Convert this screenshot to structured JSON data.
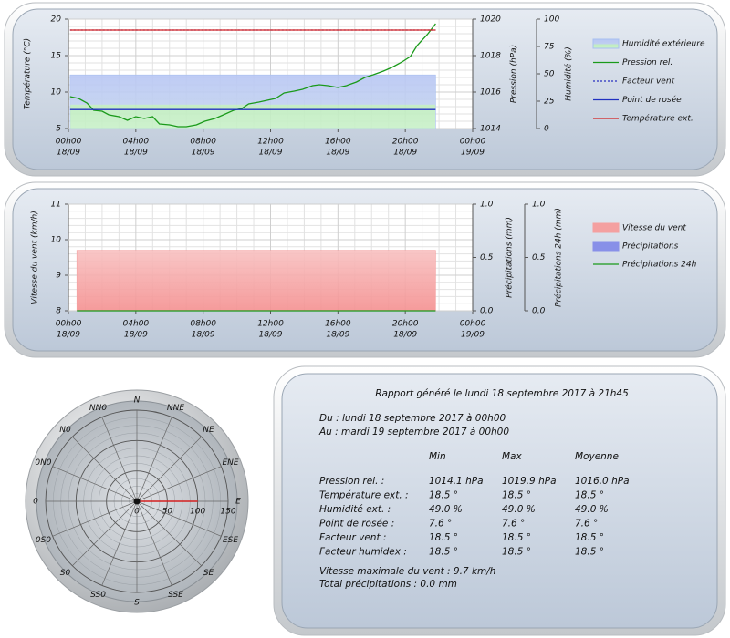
{
  "chart_data": [
    {
      "type": "line",
      "xlim": [
        0,
        24
      ],
      "xticks": [
        {
          "value": 0,
          "label": "00h00",
          "sub": "18/09"
        },
        {
          "value": 4,
          "label": "04h00",
          "sub": "18/09"
        },
        {
          "value": 8,
          "label": "08h00",
          "sub": "18/09"
        },
        {
          "value": 12,
          "label": "12h00",
          "sub": "18/09"
        },
        {
          "value": 16,
          "label": "16h00",
          "sub": "18/09"
        },
        {
          "value": 20,
          "label": "20h00",
          "sub": "18/09"
        },
        {
          "value": 24,
          "label": "00h00",
          "sub": "19/09"
        }
      ],
      "ylabel": "Température (°C)",
      "ylim": [
        5,
        20
      ],
      "yticks": [
        5,
        10,
        15,
        20
      ],
      "y2label": "Pression (hPa)",
      "y2lim": [
        1014,
        1020
      ],
      "y2ticks": [
        1014,
        1016,
        1018,
        1020
      ],
      "y3label": "Humidité (%)",
      "y3lim": [
        0,
        100
      ],
      "y3ticks": [
        0,
        25,
        50,
        75,
        100
      ],
      "grid": true,
      "x": [
        0.1,
        0.6,
        1.1,
        1.5,
        2.0,
        2.4,
        3.0,
        3.5,
        4.0,
        4.5,
        5.0,
        5.4,
        6.0,
        6.5,
        7.0,
        7.6,
        8.1,
        8.7,
        9.2,
        9.8,
        10.3,
        10.7,
        11.3,
        11.8,
        12.3,
        12.8,
        13.4,
        13.9,
        14.5,
        14.9,
        15.4,
        16.0,
        16.5,
        17.1,
        17.6,
        18.1,
        18.7,
        19.2,
        19.8,
        20.3,
        20.7,
        21.3,
        21.8
      ],
      "series": [
        {
          "name": "Humidité extérieure",
          "style": "area",
          "color": "#a8c0f0",
          "axis": "y3",
          "values": [
            49,
            49,
            49,
            49,
            49,
            49,
            49,
            49,
            49,
            49,
            49,
            49,
            49,
            49,
            49,
            49,
            49,
            49,
            49,
            49,
            49,
            49,
            49,
            49,
            49,
            49,
            49,
            49,
            49,
            49,
            49,
            49,
            49,
            49,
            49,
            49,
            49,
            49,
            49,
            49,
            49,
            49,
            49
          ]
        },
        {
          "name": "Pression rel.",
          "style": "line",
          "color": "#1a9a1a",
          "axis": "y2",
          "values": [
            1015.75,
            1015.65,
            1015.4,
            1015.0,
            1014.95,
            1014.75,
            1014.65,
            1014.45,
            1014.65,
            1014.55,
            1014.65,
            1014.25,
            1014.2,
            1014.1,
            1014.1,
            1014.2,
            1014.4,
            1014.55,
            1014.75,
            1015.0,
            1015.1,
            1015.35,
            1015.45,
            1015.55,
            1015.65,
            1015.95,
            1016.05,
            1016.15,
            1016.35,
            1016.4,
            1016.35,
            1016.25,
            1016.35,
            1016.55,
            1016.8,
            1016.95,
            1017.15,
            1017.35,
            1017.65,
            1017.95,
            1018.55,
            1019.15,
            1019.75
          ]
        },
        {
          "name": "Facteur vent",
          "style": "dash",
          "color": "#2830c0",
          "values": [
            18.5,
            18.5,
            18.5,
            18.5,
            18.5,
            18.5,
            18.5,
            18.5,
            18.5,
            18.5,
            18.5,
            18.5,
            18.5,
            18.5,
            18.5,
            18.5,
            18.5,
            18.5,
            18.5,
            18.5,
            18.5,
            18.5,
            18.5,
            18.5,
            18.5,
            18.5,
            18.5,
            18.5,
            18.5,
            18.5,
            18.5,
            18.5,
            18.5,
            18.5,
            18.5,
            18.5,
            18.5,
            18.5,
            18.5,
            18.5,
            18.5,
            18.5,
            18.5
          ]
        },
        {
          "name": "Point de rosée",
          "style": "line",
          "color": "#2030c0",
          "values": [
            7.6,
            7.6,
            7.6,
            7.6,
            7.6,
            7.6,
            7.6,
            7.6,
            7.6,
            7.6,
            7.6,
            7.6,
            7.6,
            7.6,
            7.6,
            7.6,
            7.6,
            7.6,
            7.6,
            7.6,
            7.6,
            7.6,
            7.6,
            7.6,
            7.6,
            7.6,
            7.6,
            7.6,
            7.6,
            7.6,
            7.6,
            7.6,
            7.6,
            7.6,
            7.6,
            7.6,
            7.6,
            7.6,
            7.6,
            7.6,
            7.6,
            7.6,
            7.6
          ]
        },
        {
          "name": "Température ext.",
          "style": "line",
          "color": "#d42020",
          "values": [
            18.5,
            18.5,
            18.5,
            18.5,
            18.5,
            18.5,
            18.5,
            18.5,
            18.5,
            18.5,
            18.5,
            18.5,
            18.5,
            18.5,
            18.5,
            18.5,
            18.5,
            18.5,
            18.5,
            18.5,
            18.5,
            18.5,
            18.5,
            18.5,
            18.5,
            18.5,
            18.5,
            18.5,
            18.5,
            18.5,
            18.5,
            18.5,
            18.5,
            18.5,
            18.5,
            18.5,
            18.5,
            18.5,
            18.5,
            18.5,
            18.5,
            18.5,
            18.5
          ]
        }
      ]
    },
    {
      "type": "line",
      "xlim": [
        0,
        24
      ],
      "xticks": [
        {
          "value": 0,
          "label": "00h00",
          "sub": "18/09"
        },
        {
          "value": 4,
          "label": "04h00",
          "sub": "18/09"
        },
        {
          "value": 8,
          "label": "08h00",
          "sub": "18/09"
        },
        {
          "value": 12,
          "label": "12h00",
          "sub": "18/09"
        },
        {
          "value": 16,
          "label": "16h00",
          "sub": "18/09"
        },
        {
          "value": 20,
          "label": "20h00",
          "sub": "18/09"
        },
        {
          "value": 24,
          "label": "00h00",
          "sub": "19/09"
        }
      ],
      "ylabel": "Vitesse du vent (km/h)",
      "ylim": [
        8,
        11
      ],
      "yticks": [
        8,
        9,
        10,
        11
      ],
      "y2label": "Précipitations (mm)",
      "y2lim": [
        0,
        1
      ],
      "y2ticks": [
        {
          "value": 0,
          "label": "0.0"
        },
        {
          "value": 0.5,
          "label": "0.5"
        },
        {
          "value": 1,
          "label": "1.0"
        }
      ],
      "y3label": "Précipitations 24h (mm)",
      "y3lim": [
        0,
        1
      ],
      "y3ticks": [
        {
          "value": 0,
          "label": "0.0"
        },
        {
          "value": 0.5,
          "label": "0.5"
        },
        {
          "value": 1,
          "label": "1.0"
        }
      ],
      "grid": true,
      "x": [
        0.5,
        21.8
      ],
      "series": [
        {
          "name": "Vitesse du vent",
          "style": "area",
          "color": "#f4a0a0",
          "values": [
            9.7,
            9.7
          ]
        },
        {
          "name": "Précipitations",
          "style": "area",
          "color": "#8890e8",
          "axis": "y2",
          "values": [
            0,
            0
          ]
        },
        {
          "name": "Précipitations 24h",
          "style": "line",
          "color": "#1a9a1a",
          "axis": "y3",
          "values": [
            0,
            0
          ]
        }
      ]
    },
    {
      "type": "polar",
      "categories": [
        "N",
        "NNE",
        "NE",
        "ENE",
        "E",
        "ESE",
        "SE",
        "SSE",
        "S",
        "SS0",
        "S0",
        "0S0",
        "0",
        "0N0",
        "N0",
        "NN0"
      ],
      "values": [
        0,
        0,
        0,
        0,
        100,
        0,
        0,
        0,
        0,
        0,
        0,
        0,
        0,
        0,
        0,
        0
      ],
      "color": "#d42020",
      "rlim": [
        0,
        150
      ],
      "rticks": [
        0,
        50,
        100,
        150
      ]
    }
  ],
  "report": {
    "title": "Rapport généré le lundi 18 septembre 2017 à 21h45",
    "period": [
      "Du : lundi 18 septembre 2017 à 00h00",
      "Au : mardi 19 septembre 2017 à 00h00"
    ],
    "columns": [
      "Min",
      "Max",
      "Moyenne"
    ],
    "rows": [
      [
        "Pression rel. :",
        "1014.1 hPa",
        "1019.9 hPa",
        "1016.0 hPa"
      ],
      [
        "Température ext. :",
        "18.5 °",
        "18.5 °",
        "18.5 °"
      ],
      [
        "Humidité ext. :",
        "49.0 %",
        "49.0 %",
        "49.0 %"
      ],
      [
        "Point de rosée :",
        "7.6 °",
        "7.6 °",
        "7.6 °"
      ],
      [
        "Facteur vent :",
        "18.5 °",
        "18.5 °",
        "18.5 °"
      ],
      [
        "Facteur humidex :",
        "18.5 °",
        "18.5 °",
        "18.5 °"
      ]
    ],
    "summary": [
      "Vitesse maximale du vent : 9.7 km/h",
      "Total précipitations : 0.0 mm"
    ]
  }
}
